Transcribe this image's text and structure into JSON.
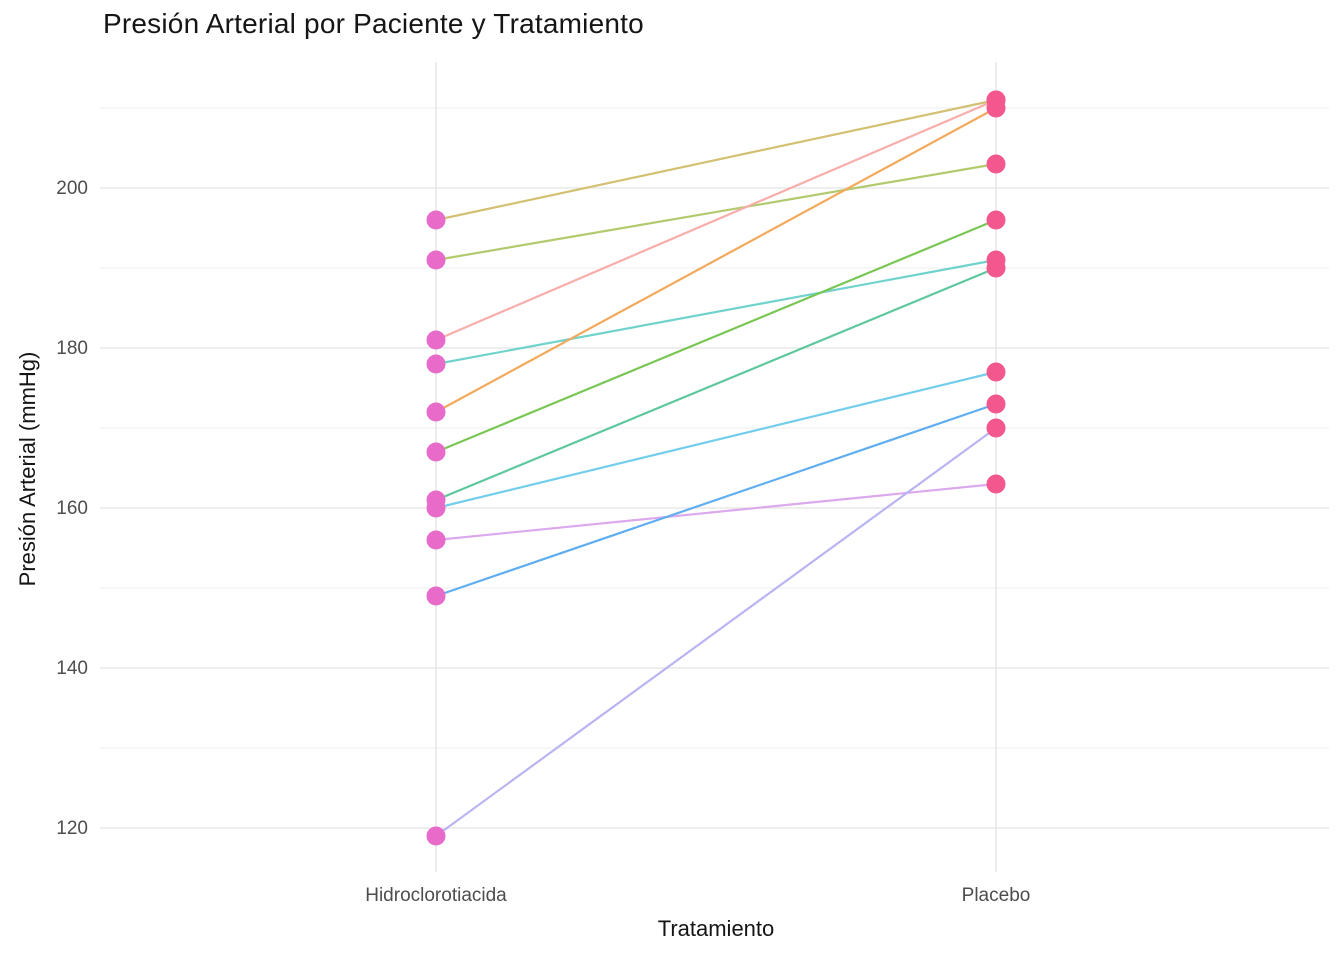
{
  "chart_data": {
    "type": "line",
    "subtype": "paired-slope-chart",
    "title": "Presión Arterial por Paciente y Tratamiento",
    "xlabel": "Tratamiento",
    "ylabel": "Presión Arterial (mmHg)",
    "categories": [
      "Hidroclorotiacida",
      "Placebo"
    ],
    "series": [
      {
        "name": "patient-1",
        "values": [
          196,
          211
        ],
        "color": "#d3c172"
      },
      {
        "name": "patient-2",
        "values": [
          191,
          203
        ],
        "color": "#b2ca6e"
      },
      {
        "name": "patient-3",
        "values": [
          181,
          211
        ],
        "color": "#f7aeaa"
      },
      {
        "name": "patient-4",
        "values": [
          178,
          191
        ],
        "color": "#6fd3cb"
      },
      {
        "name": "patient-5",
        "values": [
          172,
          210
        ],
        "color": "#f2a95c"
      },
      {
        "name": "patient-6",
        "values": [
          167,
          196
        ],
        "color": "#7ac655"
      },
      {
        "name": "patient-7",
        "values": [
          161,
          190
        ],
        "color": "#5ec79d"
      },
      {
        "name": "patient-8",
        "values": [
          160,
          177
        ],
        "color": "#73cdec"
      },
      {
        "name": "patient-9",
        "values": [
          156,
          163
        ],
        "color": "#dcaaec"
      },
      {
        "name": "patient-10",
        "values": [
          149,
          173
        ],
        "color": "#60aef0"
      },
      {
        "name": "patient-11",
        "values": [
          119,
          170
        ],
        "color": "#b9b4f2"
      }
    ],
    "point_colors_by_category": [
      "#e86bc9",
      "#f4578e"
    ],
    "y_ticks": [
      120,
      140,
      160,
      180,
      200
    ],
    "y_minor_ticks": [
      130,
      150,
      170,
      190,
      210
    ],
    "ylim": [
      114,
      216
    ],
    "grid": true,
    "legend": "none",
    "colors": {
      "background": "#ffffff",
      "grid_major": "#e8e8e8",
      "grid_minor": "#f4f4f4",
      "tick_label": "#4d4d4d",
      "title_text": "#151515"
    }
  }
}
